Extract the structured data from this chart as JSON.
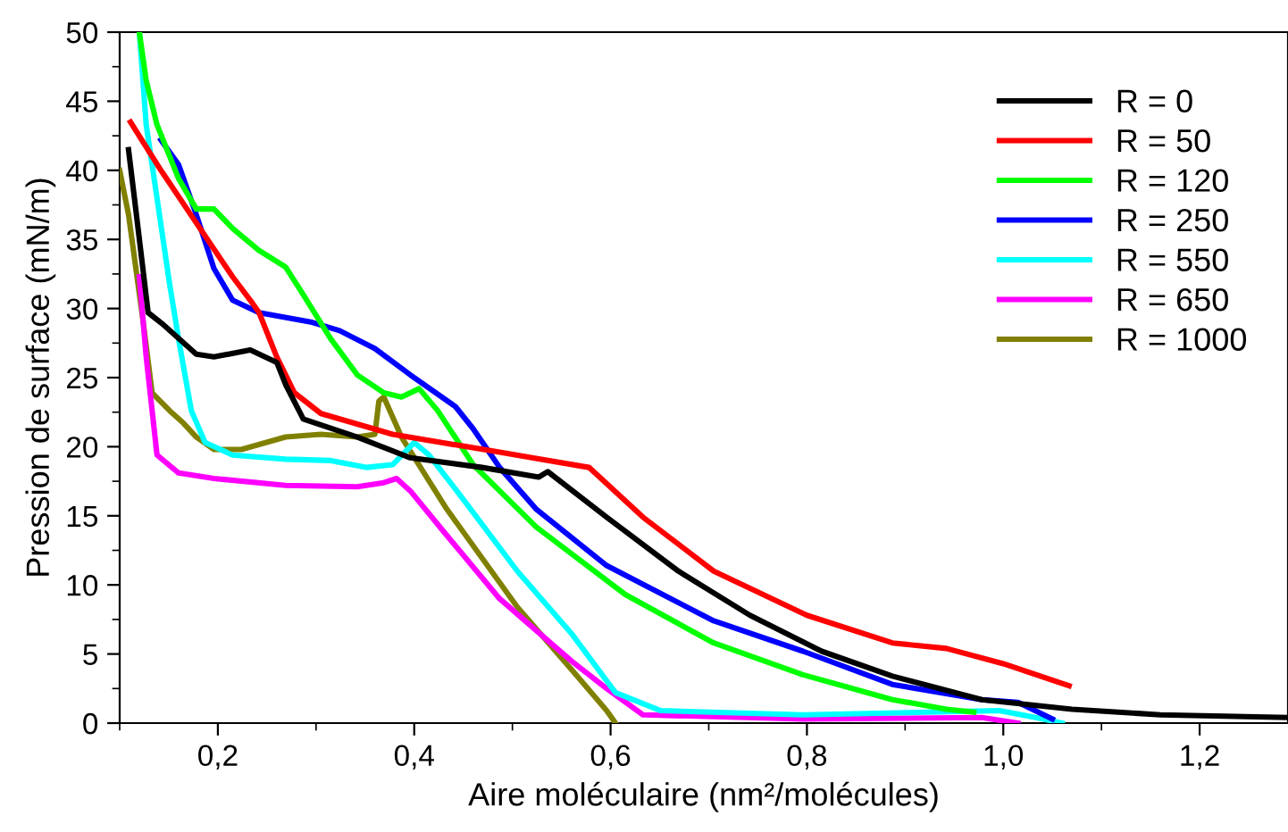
{
  "chart_data": {
    "type": "line",
    "xlabel": "Aire moléculaire (nm²/molécules)",
    "ylabel": "Pression de surface (mN/m)",
    "xlim": [
      0.1,
      1.29
    ],
    "ylim": [
      0,
      50
    ],
    "xticks": [
      {
        "value": 0.2,
        "label": "0,2"
      },
      {
        "value": 0.4,
        "label": "0,4"
      },
      {
        "value": 0.6,
        "label": "0,6"
      },
      {
        "value": 0.8,
        "label": "0,8"
      },
      {
        "value": 1.0,
        "label": "1,0"
      },
      {
        "value": 1.2,
        "label": "1,2"
      }
    ],
    "yticks": [
      0,
      5,
      10,
      15,
      20,
      25,
      30,
      35,
      40,
      45,
      50
    ],
    "grid": false,
    "legend": "top right",
    "marker": "none",
    "line_style": "solid",
    "series": [
      {
        "name": "R = 0",
        "color": "#000000",
        "x": [
          0.109,
          0.115,
          0.129,
          0.145,
          0.178,
          0.196,
          0.233,
          0.26,
          0.269,
          0.287,
          0.342,
          0.396,
          0.469,
          0.527,
          0.536,
          0.596,
          0.669,
          0.742,
          0.815,
          0.887,
          0.978,
          1.07,
          1.16,
          1.29
        ],
        "values": [
          41.5,
          38,
          29.7,
          28.8,
          26.7,
          26.5,
          27,
          26.1,
          24.5,
          22,
          20.7,
          19.2,
          18.5,
          17.8,
          18.2,
          14.9,
          11,
          7.8,
          5.2,
          3.4,
          1.7,
          1.0,
          0.6,
          0.4
        ]
      },
      {
        "name": "R = 50",
        "color": "#ff0000",
        "x": [
          0.111,
          0.142,
          0.178,
          0.215,
          0.233,
          0.242,
          0.26,
          0.278,
          0.305,
          0.378,
          0.487,
          0.578,
          0.633,
          0.705,
          0.8,
          0.887,
          0.942,
          1.0,
          1.067
        ],
        "values": [
          43.5,
          40,
          36.2,
          32.3,
          30.6,
          29.7,
          26.5,
          23.9,
          22.4,
          20.9,
          19.6,
          18.5,
          14.9,
          11,
          7.8,
          5.8,
          5.4,
          4.3,
          2.7
        ]
      },
      {
        "name": "R = 120",
        "color": "#00ff00",
        "x": [
          0.12,
          0.127,
          0.138,
          0.16,
          0.178,
          0.196,
          0.215,
          0.242,
          0.269,
          0.287,
          0.315,
          0.342,
          0.369,
          0.387,
          0.405,
          0.424,
          0.46,
          0.524,
          0.615,
          0.705,
          0.796,
          0.887,
          0.942,
          0.97
        ],
        "values": [
          50,
          46.5,
          43.3,
          39.4,
          37.2,
          37.2,
          35.8,
          34.2,
          33,
          31,
          27.8,
          25.2,
          23.9,
          23.6,
          24.2,
          22.6,
          18.7,
          14.2,
          9.3,
          5.8,
          3.5,
          1.7,
          1.0,
          0.8
        ]
      },
      {
        "name": "R = 250",
        "color": "#0000ff",
        "x": [
          0.142,
          0.16,
          0.178,
          0.196,
          0.215,
          0.242,
          0.296,
          0.324,
          0.36,
          0.396,
          0.442,
          0.46,
          0.487,
          0.524,
          0.596,
          0.705,
          0.796,
          0.887,
          0.978,
          1.015,
          1.05
        ],
        "values": [
          42.2,
          40.4,
          36.8,
          32.9,
          30.6,
          29.7,
          29,
          28.4,
          27.1,
          25.2,
          22.9,
          21.3,
          18.5,
          15.5,
          11.4,
          7.4,
          5.2,
          2.8,
          1.7,
          1.5,
          0.3
        ]
      },
      {
        "name": "R = 550",
        "color": "#00ffff",
        "x": [
          0.12,
          0.127,
          0.138,
          0.151,
          0.16,
          0.173,
          0.187,
          0.215,
          0.269,
          0.315,
          0.351,
          0.378,
          0.4,
          0.415,
          0.451,
          0.505,
          0.56,
          0.605,
          0.651,
          0.796,
          0.996,
          1.033,
          1.06
        ],
        "values": [
          50,
          43.3,
          38,
          31.7,
          27.8,
          22.6,
          20.3,
          19.4,
          19.1,
          19,
          18.5,
          18.7,
          20.3,
          19.4,
          16.1,
          11,
          6.5,
          2.2,
          0.9,
          0.6,
          0.9,
          0.4,
          0
        ]
      },
      {
        "name": "R = 650",
        "color": "#ff00ff",
        "x": [
          0.12,
          0.127,
          0.138,
          0.16,
          0.196,
          0.269,
          0.342,
          0.369,
          0.382,
          0.396,
          0.433,
          0.487,
          0.56,
          0.596,
          0.633,
          0.796,
          0.978,
          1.015
        ],
        "values": [
          32.3,
          26.5,
          19.4,
          18.1,
          17.7,
          17.2,
          17.1,
          17.4,
          17.7,
          16.8,
          13.6,
          9,
          4.5,
          2.5,
          0.6,
          0.3,
          0.4,
          0
        ]
      },
      {
        "name": "R = 1000",
        "color": "#808000",
        "x": [
          0.1,
          0.109,
          0.124,
          0.133,
          0.151,
          0.165,
          0.178,
          0.196,
          0.224,
          0.269,
          0.305,
          0.342,
          0.36,
          0.364,
          0.369,
          0.387,
          0.433,
          0.505,
          0.56,
          0.596,
          0.605
        ],
        "values": [
          40,
          36.8,
          29,
          23.9,
          22.6,
          21.7,
          20.7,
          19.8,
          19.8,
          20.7,
          20.9,
          20.7,
          20.9,
          23.3,
          23.6,
          20.7,
          15.5,
          8.4,
          3.9,
          0.9,
          0
        ]
      }
    ]
  }
}
